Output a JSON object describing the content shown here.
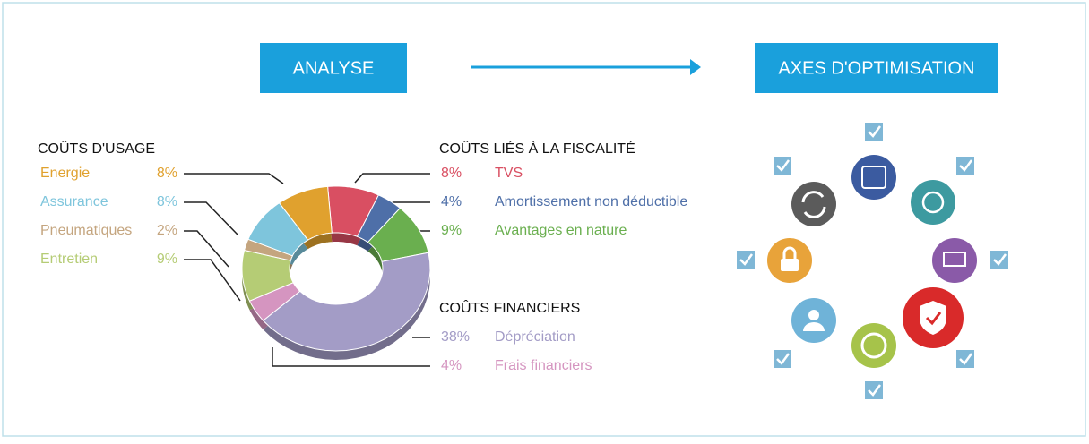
{
  "header": {
    "left": "ANALYSE",
    "right": "AXES D'OPTIMISATION"
  },
  "chart_data": {
    "type": "pie",
    "donut": true,
    "series": [
      {
        "name": "COÛTS D'USAGE",
        "categories": [
          "Energie",
          "Assurance",
          "Pneumatiques",
          "Entretien"
        ],
        "values": [
          8,
          8,
          2,
          9
        ],
        "value_labels": [
          "8%",
          "8%",
          "2%",
          "9%"
        ],
        "colors": [
          "#e0a12e",
          "#7ec5dc",
          "#c4a57f",
          "#b5cc75"
        ]
      },
      {
        "name": "COÛTS LIÉS À LA FISCALITÉ",
        "categories": [
          "TVS",
          "Amortissement non déductible",
          "Avantages en nature"
        ],
        "values": [
          8,
          4,
          9
        ],
        "value_labels": [
          "8%",
          "4%",
          "9%"
        ],
        "colors": [
          "#d94f62",
          "#4e6fa8",
          "#6aaf4f"
        ]
      },
      {
        "name": "COÛTS FINANCIERS",
        "categories": [
          "Dépréciation",
          "Frais financiers"
        ],
        "values": [
          38,
          4
        ],
        "value_labels": [
          "38%",
          "4%"
        ],
        "colors": [
          "#a39cc6",
          "#d595c0"
        ]
      }
    ]
  }
}
